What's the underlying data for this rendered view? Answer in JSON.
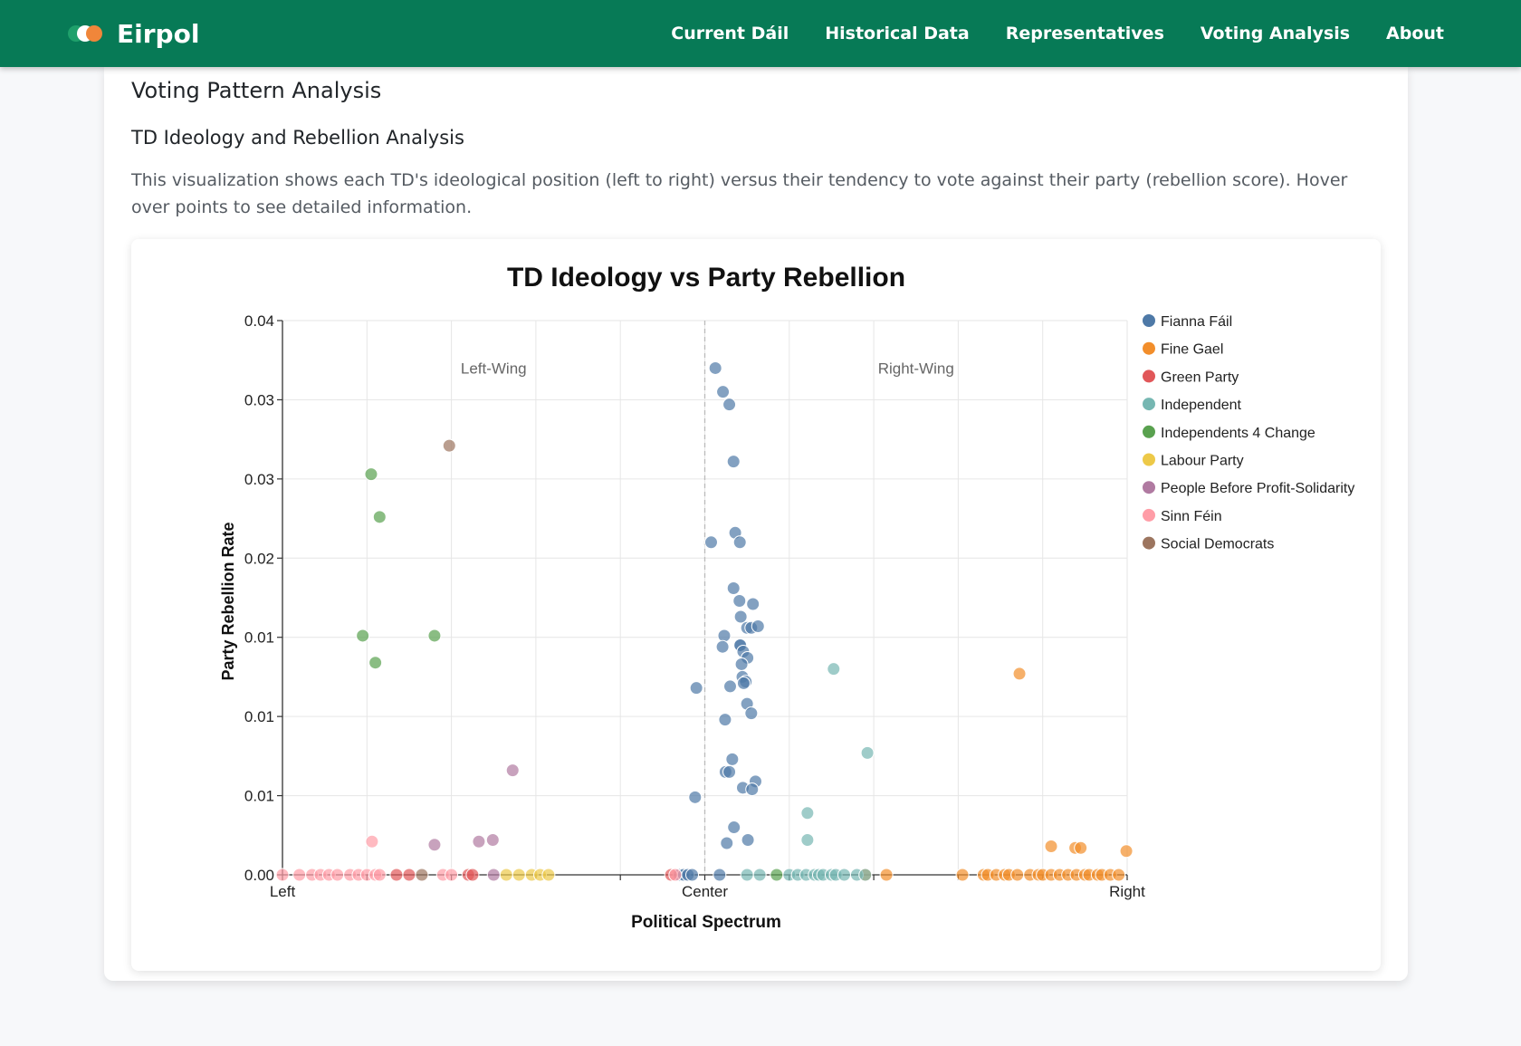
{
  "app": {
    "name": "Eirpol"
  },
  "nav": [
    {
      "label": "Current Dáil",
      "key": "current-dail"
    },
    {
      "label": "Historical Data",
      "key": "historical-data"
    },
    {
      "label": "Representatives",
      "key": "representatives"
    },
    {
      "label": "Voting Analysis",
      "key": "voting-analysis"
    },
    {
      "label": "About",
      "key": "about"
    }
  ],
  "page": {
    "title": "Voting Pattern Analysis",
    "section_title": "TD Ideology and Rebellion Analysis",
    "description": "This visualization shows each TD's ideological position (left to right) versus their tendency to vote against their party (rebellion score). Hover over points to see detailed information."
  },
  "chart_data": {
    "type": "scatter",
    "title": "TD Ideology vs Party Rebellion",
    "xlabel": "Political Spectrum",
    "ylabel": "Party Rebellion Rate",
    "xlim": [
      -1,
      1
    ],
    "ylim": [
      0,
      0.035
    ],
    "x_ticks": [
      {
        "value": -1,
        "label": "Left"
      },
      {
        "value": 0,
        "label": "Center"
      },
      {
        "value": 1,
        "label": "Right"
      }
    ],
    "y_ticks": [
      {
        "value": 0,
        "label": "0.00"
      },
      {
        "value": 0.005,
        "label": "0.01"
      },
      {
        "value": 0.01,
        "label": "0.01"
      },
      {
        "value": 0.015,
        "label": "0.01"
      },
      {
        "value": 0.02,
        "label": "0.02"
      },
      {
        "value": 0.025,
        "label": "0.03"
      },
      {
        "value": 0.03,
        "label": "0.03"
      },
      {
        "value": 0.035,
        "label": "0.04"
      }
    ],
    "annotations": [
      {
        "text": "Left-Wing",
        "x": -0.5,
        "y": 0.032
      },
      {
        "text": "Right-Wing",
        "x": 0.5,
        "y": 0.032
      }
    ],
    "grid": true,
    "legend_position": "right",
    "center_line": true,
    "series": [
      {
        "name": "Fianna Fáil",
        "color": "#4e79a7",
        "points": [
          [
            0.025,
            0.032
          ],
          [
            0.043,
            0.0305
          ],
          [
            0.058,
            0.0297
          ],
          [
            0.068,
            0.0261
          ],
          [
            0.072,
            0.0216
          ],
          [
            0.015,
            0.021
          ],
          [
            0.083,
            0.021
          ],
          [
            0.068,
            0.0181
          ],
          [
            0.082,
            0.0173
          ],
          [
            0.114,
            0.0171
          ],
          [
            0.085,
            0.0163
          ],
          [
            0.1,
            0.0156
          ],
          [
            0.11,
            0.0156
          ],
          [
            0.126,
            0.0157
          ],
          [
            0.046,
            0.0151
          ],
          [
            0.083,
            0.0145
          ],
          [
            0.084,
            0.0145
          ],
          [
            0.042,
            0.0144
          ],
          [
            0.091,
            0.0141
          ],
          [
            0.101,
            0.0137
          ],
          [
            0.087,
            0.0133
          ],
          [
            0.089,
            0.0125
          ],
          [
            0.097,
            0.0122
          ],
          [
            0.092,
            0.0121
          ],
          [
            -0.02,
            0.0118
          ],
          [
            0.06,
            0.0119
          ],
          [
            0.1,
            0.0108
          ],
          [
            0.11,
            0.0102
          ],
          [
            0.048,
            0.0098
          ],
          [
            0.065,
            0.0073
          ],
          [
            0.049,
            0.0065
          ],
          [
            0.058,
            0.0065
          ],
          [
            0.12,
            0.0059
          ],
          [
            0.09,
            0.0055
          ],
          [
            0.112,
            0.0054
          ],
          [
            -0.023,
            0.0049
          ],
          [
            0.069,
            0.003
          ],
          [
            0.102,
            0.0022
          ],
          [
            0.052,
            0.002
          ],
          [
            -0.06,
            0
          ],
          [
            -0.05,
            0
          ],
          [
            -0.04,
            0
          ],
          [
            -0.03,
            0
          ],
          [
            0.035,
            0
          ]
        ]
      },
      {
        "name": "Fine Gael",
        "color": "#f28e2b",
        "points": [
          [
            0.745,
            0.0127
          ],
          [
            0.82,
            0.0018
          ],
          [
            0.877,
            0.0017
          ],
          [
            0.89,
            0.0017
          ],
          [
            0.998,
            0.0015
          ],
          [
            0.38,
            0
          ],
          [
            0.43,
            0
          ],
          [
            0.61,
            0
          ],
          [
            0.66,
            0
          ],
          [
            0.67,
            0
          ],
          [
            0.69,
            0
          ],
          [
            0.71,
            0
          ],
          [
            0.72,
            0
          ],
          [
            0.74,
            0
          ],
          [
            0.77,
            0
          ],
          [
            0.79,
            0
          ],
          [
            0.8,
            0
          ],
          [
            0.82,
            0
          ],
          [
            0.84,
            0
          ],
          [
            0.86,
            0
          ],
          [
            0.88,
            0
          ],
          [
            0.9,
            0
          ],
          [
            0.91,
            0
          ],
          [
            0.93,
            0
          ],
          [
            0.94,
            0
          ],
          [
            0.96,
            0
          ],
          [
            0.98,
            0
          ]
        ]
      },
      {
        "name": "Green Party",
        "color": "#e15759",
        "points": [
          [
            -0.73,
            0
          ],
          [
            -0.7,
            0
          ],
          [
            -0.56,
            0
          ],
          [
            -0.55,
            0
          ],
          [
            -0.08,
            0
          ]
        ]
      },
      {
        "name": "Independent",
        "color": "#76b7b2",
        "points": [
          [
            0.305,
            0.013
          ],
          [
            0.385,
            0.0077
          ],
          [
            0.243,
            0.0039
          ],
          [
            0.243,
            0.0022
          ],
          [
            0.1,
            0
          ],
          [
            0.13,
            0
          ],
          [
            0.2,
            0
          ],
          [
            0.22,
            0
          ],
          [
            0.24,
            0
          ],
          [
            0.26,
            0
          ],
          [
            0.27,
            0
          ],
          [
            0.28,
            0
          ],
          [
            0.3,
            0
          ],
          [
            0.31,
            0
          ],
          [
            0.33,
            0
          ],
          [
            0.36,
            0
          ],
          [
            0.38,
            0
          ]
        ]
      },
      {
        "name": "Independents 4 Change",
        "color": "#59a14f",
        "points": [
          [
            -0.79,
            0.0253
          ],
          [
            -0.77,
            0.0226
          ],
          [
            -0.64,
            0.0151
          ],
          [
            -0.81,
            0.0151
          ],
          [
            -0.78,
            0.0134
          ],
          [
            0.17,
            0
          ]
        ]
      },
      {
        "name": "Labour Party",
        "color": "#edc948",
        "points": [
          [
            -0.47,
            0
          ],
          [
            -0.44,
            0
          ],
          [
            -0.41,
            0
          ],
          [
            -0.39,
            0
          ],
          [
            -0.37,
            0
          ]
        ]
      },
      {
        "name": "People Before Profit-Solidarity",
        "color": "#b07aa1",
        "points": [
          [
            -0.455,
            0.0066
          ],
          [
            -0.64,
            0.0019
          ],
          [
            -0.535,
            0.0021
          ],
          [
            -0.502,
            0.0022
          ],
          [
            -0.5,
            0
          ]
        ]
      },
      {
        "name": "Sinn Féin",
        "color": "#ff9da7",
        "points": [
          [
            -0.788,
            0.0021
          ],
          [
            -1.0,
            0
          ],
          [
            -0.96,
            0
          ],
          [
            -0.93,
            0
          ],
          [
            -0.91,
            0
          ],
          [
            -0.89,
            0
          ],
          [
            -0.87,
            0
          ],
          [
            -0.84,
            0
          ],
          [
            -0.82,
            0
          ],
          [
            -0.8,
            0
          ],
          [
            -0.78,
            0
          ],
          [
            -0.77,
            0
          ],
          [
            -0.62,
            0
          ],
          [
            -0.6,
            0
          ],
          [
            -0.07,
            0
          ]
        ]
      },
      {
        "name": "Social Democrats",
        "color": "#9c755f",
        "points": [
          [
            -0.605,
            0.0271
          ],
          [
            -0.67,
            0
          ]
        ]
      }
    ]
  }
}
